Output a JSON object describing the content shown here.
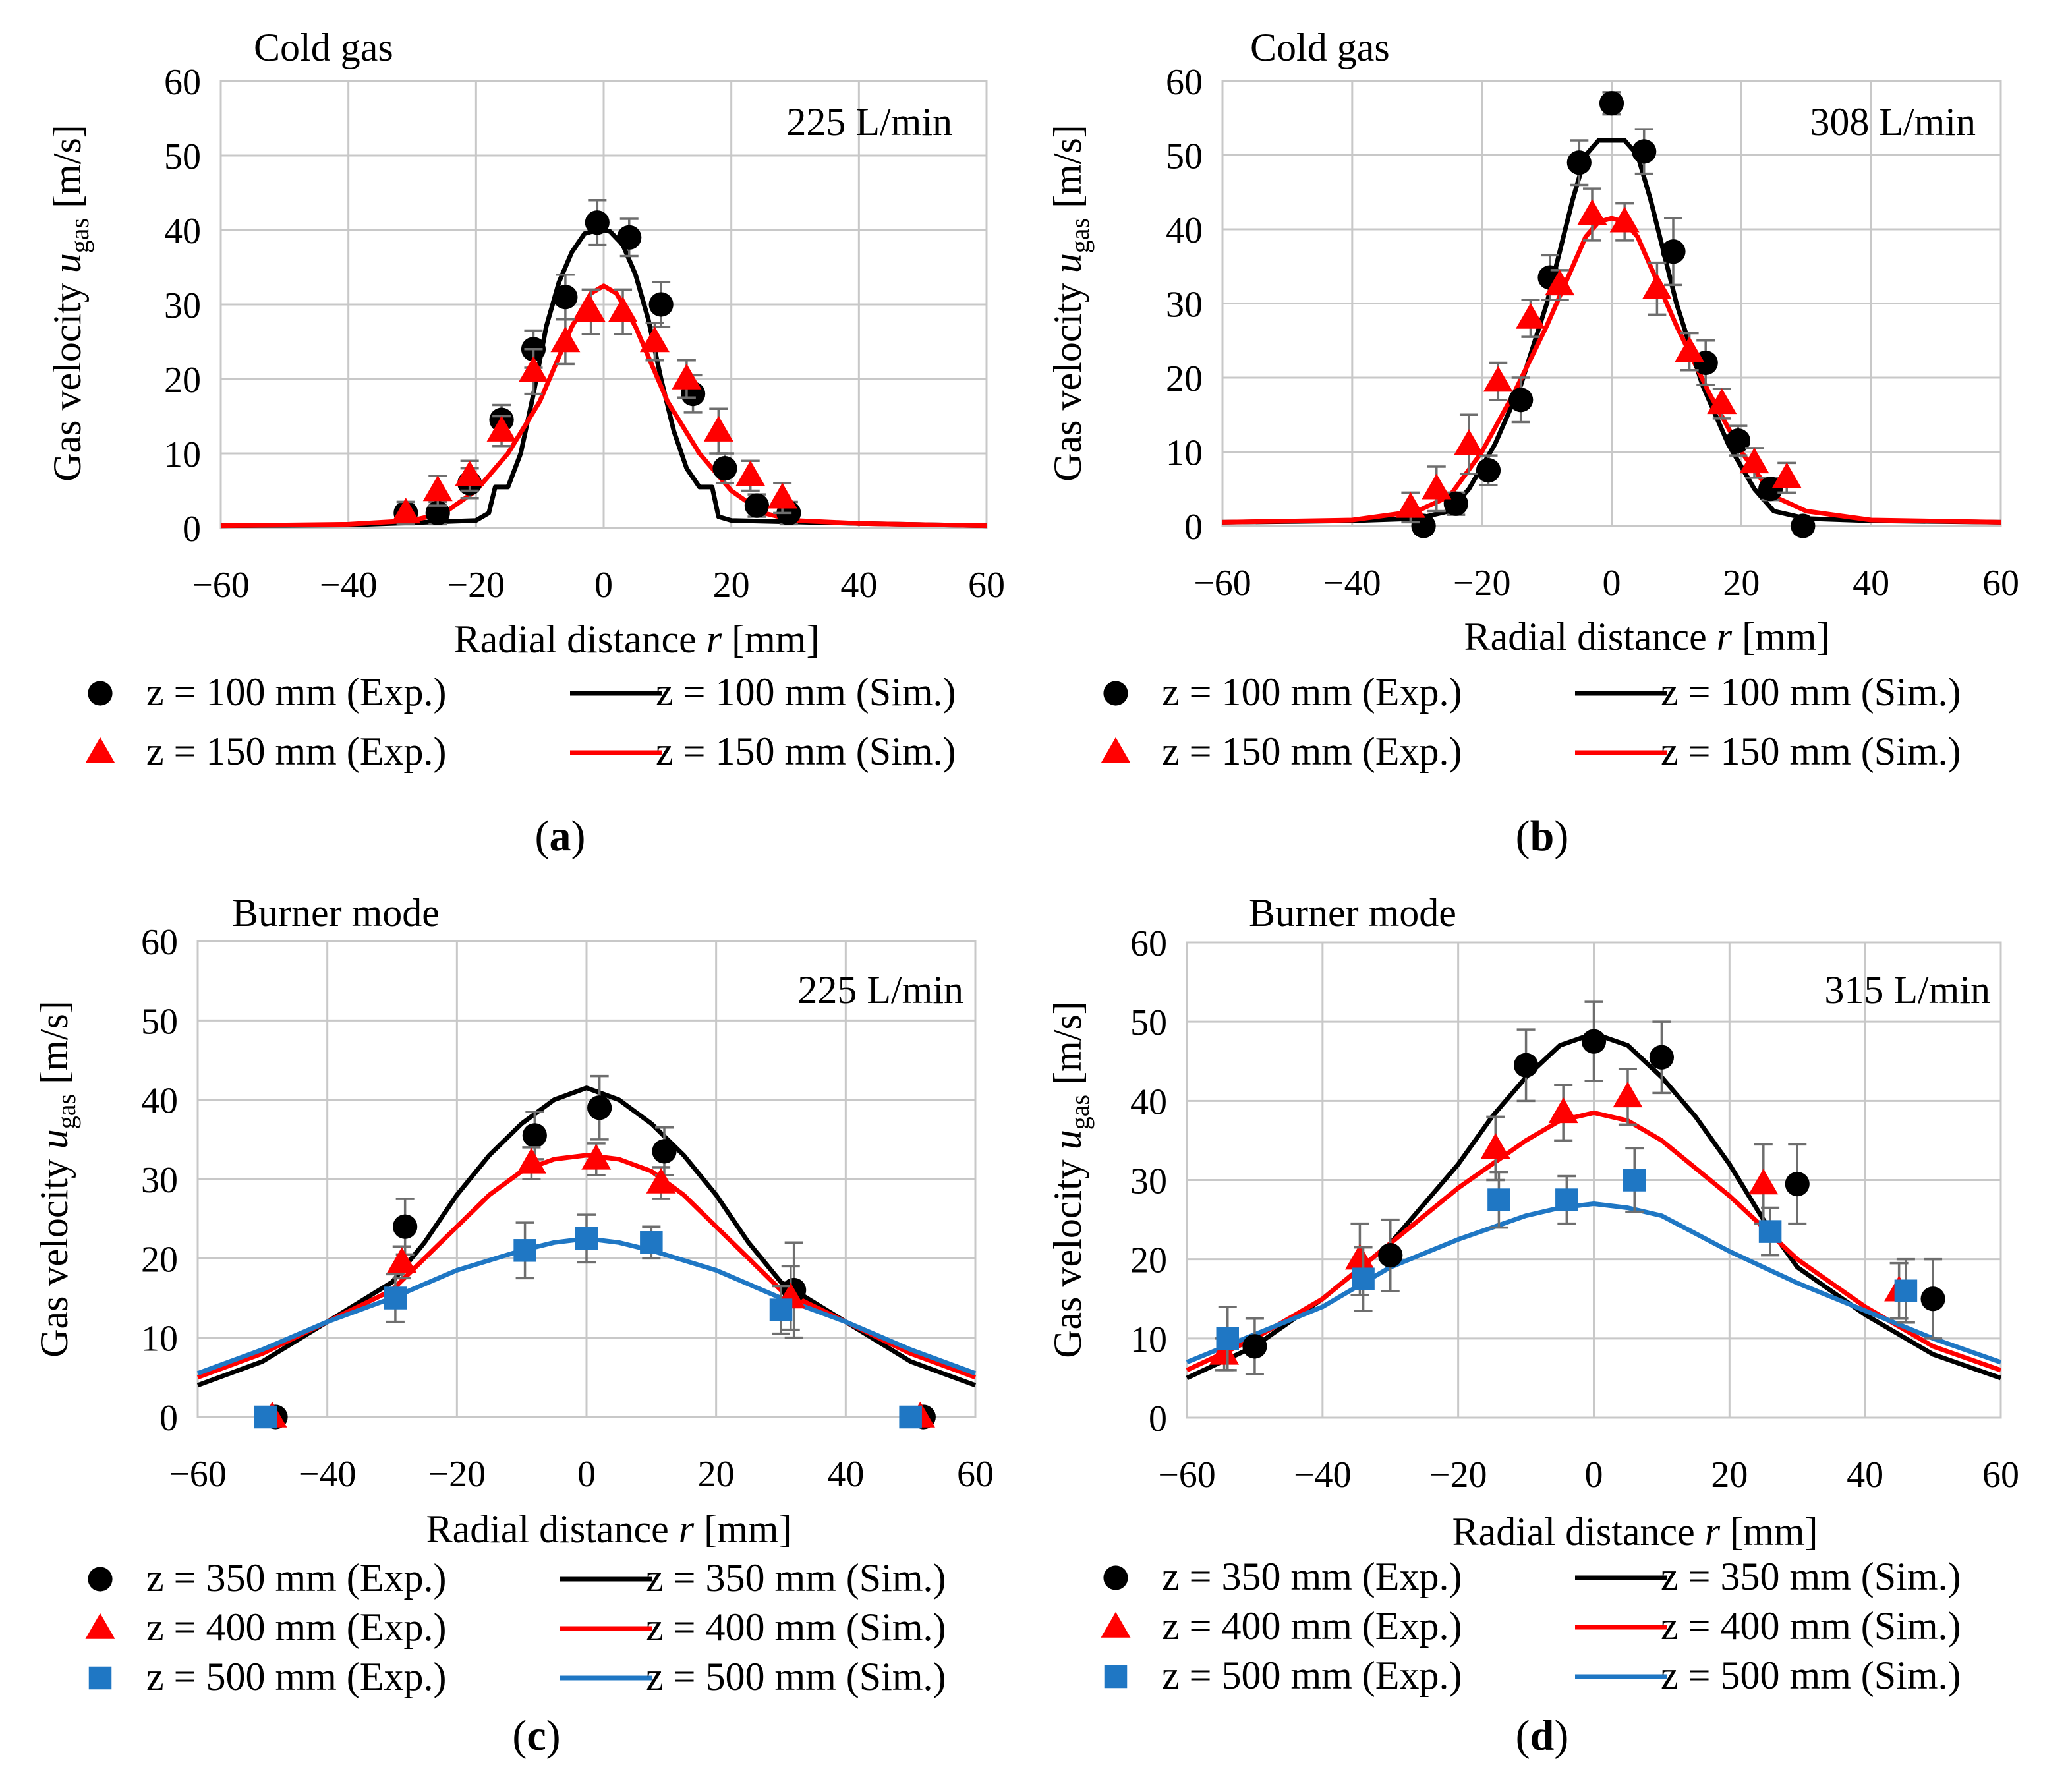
{
  "chart_data": [
    {
      "id": "a",
      "type": "scatter",
      "title": "Cold gas",
      "flow_label": "225 L/min",
      "panel_label": "(a)",
      "panel_letter": "a",
      "xlabel_pre": "Radial distance ",
      "xlabel_var": "r",
      "xlabel_post": " [mm]",
      "ylabel_pre": "Gas velocity ",
      "ylabel_var": "u",
      "ylabel_sub": "gas",
      "ylabel_post": " [m/s]",
      "xlim": [
        -60,
        60
      ],
      "ylim": [
        0,
        60
      ],
      "xticks": [
        -60,
        -40,
        -20,
        0,
        20,
        40,
        60
      ],
      "yticks": [
        0,
        10,
        20,
        30,
        40,
        50,
        60
      ],
      "xtick_labels": [
        "−60",
        "−40",
        "−20",
        "0",
        "20",
        "40",
        "60"
      ],
      "ytick_labels": [
        "0",
        "10",
        "20",
        "30",
        "40",
        "50",
        "60"
      ],
      "grid": true,
      "series": [
        {
          "name": "z = 100 mm (Exp.)",
          "kind": "exp",
          "marker": "circle",
          "color": "#000000",
          "x": [
            -31,
            -26,
            -21,
            -16,
            -11,
            -6,
            -1,
            4,
            9,
            14,
            19,
            24,
            29
          ],
          "y": [
            2,
            2,
            6,
            14.5,
            24,
            31,
            41,
            39,
            30,
            18,
            8,
            3,
            2
          ],
          "err": [
            1.5,
            1.5,
            2,
            2,
            2.5,
            3,
            3,
            2.5,
            3,
            2.5,
            2,
            1.5,
            1.5
          ]
        },
        {
          "name": "z = 150 mm (Exp.)",
          "kind": "exp",
          "marker": "triangle",
          "color": "#ff0000",
          "x": [
            -31,
            -26,
            -21,
            -16,
            -11,
            -6,
            -2,
            3,
            8,
            13,
            18,
            23,
            28
          ],
          "y": [
            2,
            5,
            7,
            13,
            21,
            25,
            29,
            29,
            25,
            20,
            13,
            7,
            4
          ],
          "err": [
            1.5,
            2,
            2,
            2,
            3,
            3,
            3,
            3,
            2.5,
            2.5,
            3,
            2,
            2
          ]
        },
        {
          "name": "z = 100 mm (Sim.)",
          "kind": "sim",
          "color": "#000000",
          "x": [
            -60,
            -40,
            -20,
            -18,
            -17,
            -15,
            -13,
            -11,
            -9,
            -7,
            -5,
            -3,
            -1,
            0,
            1,
            3,
            5,
            7,
            9,
            11,
            13,
            15,
            17,
            18,
            20,
            40,
            60
          ],
          "y": [
            0.3,
            0.4,
            1,
            2,
            5.5,
            5.5,
            10,
            18,
            27,
            33,
            37,
            39.5,
            40,
            40,
            39.8,
            38,
            34,
            28,
            20,
            13,
            8,
            5.5,
            5.5,
            1.5,
            1,
            0.6,
            0.3
          ]
        },
        {
          "name": "z = 150 mm (Sim.)",
          "kind": "sim",
          "color": "#ff0000",
          "x": [
            -60,
            -40,
            -30,
            -25,
            -20,
            -15,
            -10,
            -5,
            -2,
            0,
            2,
            5,
            10,
            15,
            20,
            25,
            30,
            40,
            60
          ],
          "y": [
            0.3,
            0.5,
            1,
            2,
            5,
            10,
            17,
            27,
            31.5,
            32.5,
            31.5,
            27,
            17,
            10,
            5,
            2,
            1,
            0.6,
            0.3
          ]
        }
      ],
      "legend_rows": [
        [
          0,
          2
        ],
        [
          1,
          3
        ]
      ]
    },
    {
      "id": "b",
      "type": "scatter",
      "title": "Cold gas",
      "flow_label": "308 L/min",
      "panel_label": "(b)",
      "panel_letter": "b",
      "xlabel_pre": "Radial distance ",
      "xlabel_var": "r",
      "xlabel_post": " [mm]",
      "ylabel_pre": "Gas velocity ",
      "ylabel_var": "u",
      "ylabel_sub": "gas",
      "ylabel_post": " [m/s]",
      "xlim": [
        -60,
        60
      ],
      "ylim": [
        0,
        60
      ],
      "xticks": [
        -60,
        -40,
        -20,
        0,
        20,
        40,
        60
      ],
      "yticks": [
        0,
        10,
        20,
        30,
        40,
        50,
        60
      ],
      "xtick_labels": [
        "−60",
        "−40",
        "−20",
        "0",
        "20",
        "40",
        "60"
      ],
      "ytick_labels": [
        "0",
        "10",
        "20",
        "30",
        "40",
        "50",
        "60"
      ],
      "grid": true,
      "series": [
        {
          "name": "z = 100 mm (Exp.)",
          "kind": "exp",
          "marker": "circle",
          "color": "#000000",
          "x": [
            -29,
            -24,
            -19,
            -14,
            -9.5,
            -5,
            0,
            5,
            9.5,
            14.5,
            19.5,
            24.5,
            29.5
          ],
          "y": [
            0,
            3,
            7.5,
            17,
            33.5,
            49,
            57,
            50.5,
            37,
            22,
            11.5,
            5,
            0
          ],
          "err": [
            1,
            1.5,
            2,
            3,
            3,
            3,
            1.5,
            3,
            4.5,
            3,
            2,
            1.5,
            1
          ]
        },
        {
          "name": "z = 150 mm (Exp.)",
          "kind": "exp",
          "marker": "triangle",
          "color": "#ff0000",
          "x": [
            -31,
            -27,
            -22,
            -17.5,
            -12.5,
            -8,
            -3,
            2,
            7,
            12,
            17,
            22,
            27
          ],
          "y": [
            2.5,
            5,
            11,
            19.5,
            28,
            32.5,
            42,
            41,
            32,
            23.5,
            16.5,
            8.5,
            6.5
          ],
          "err": [
            2,
            3,
            4,
            2.5,
            2.5,
            2,
            3.5,
            2.5,
            3.5,
            2.5,
            2,
            2,
            2
          ]
        },
        {
          "name": "z = 100 mm (Sim.)",
          "kind": "sim",
          "color": "#000000",
          "x": [
            -60,
            -40,
            -30,
            -25,
            -22,
            -18,
            -14,
            -10,
            -6,
            -4,
            -2,
            0,
            2,
            4,
            6,
            10,
            14,
            18,
            22,
            25,
            30,
            40,
            60
          ],
          "y": [
            0.5,
            0.7,
            1,
            2,
            5,
            11,
            19,
            30,
            44,
            50,
            52,
            52,
            52,
            50,
            44,
            30,
            19,
            11,
            5,
            2,
            1,
            0.7,
            0.5
          ]
        },
        {
          "name": "z = 150 mm (Sim.)",
          "kind": "sim",
          "color": "#ff0000",
          "x": [
            -60,
            -40,
            -30,
            -25,
            -20,
            -15,
            -10,
            -6,
            -4,
            -2,
            0,
            2,
            4,
            6,
            10,
            15,
            20,
            25,
            30,
            40,
            60
          ],
          "y": [
            0.5,
            0.8,
            2,
            4,
            10,
            18,
            27,
            35,
            39,
            41,
            41.5,
            41,
            39,
            35,
            27,
            18,
            10,
            4,
            2,
            0.8,
            0.5
          ]
        }
      ],
      "legend_rows": [
        [
          0,
          2
        ],
        [
          1,
          3
        ]
      ]
    },
    {
      "id": "c",
      "type": "scatter",
      "title": "Burner mode",
      "flow_label": "225 L/min",
      "panel_label": "(c)",
      "panel_letter": "c",
      "xlabel_pre": "Radial distance ",
      "xlabel_var": "r",
      "xlabel_post": " [mm]",
      "ylabel_pre": "Gas velocity ",
      "ylabel_var": "u",
      "ylabel_sub": "gas",
      "ylabel_post": " [m/s]",
      "xlim": [
        -60,
        60
      ],
      "ylim": [
        0,
        60
      ],
      "xticks": [
        -60,
        -40,
        -20,
        0,
        20,
        40,
        60
      ],
      "yticks": [
        0,
        10,
        20,
        30,
        40,
        50,
        60
      ],
      "xtick_labels": [
        "−60",
        "−40",
        "−20",
        "0",
        "20",
        "40",
        "60"
      ],
      "ytick_labels": [
        "0",
        "10",
        "20",
        "30",
        "40",
        "50",
        "60"
      ],
      "grid": true,
      "series": [
        {
          "name": "z = 350 mm (Exp.)",
          "kind": "exp",
          "marker": "circle",
          "color": "#000000",
          "x": [
            -48,
            -28,
            -8,
            2,
            12,
            32,
            52
          ],
          "y": [
            0,
            24,
            35.5,
            39,
            33.5,
            16,
            0
          ],
          "err": [
            0,
            3.5,
            3,
            4,
            3,
            6,
            0
          ]
        },
        {
          "name": "z = 400 mm (Exp.)",
          "kind": "exp",
          "marker": "triangle",
          "color": "#ff0000",
          "x": [
            -48.5,
            -28.5,
            -8.5,
            1.5,
            11.5,
            31.5,
            51.5
          ],
          "y": [
            0,
            19.5,
            32,
            32.5,
            29.5,
            15,
            0
          ],
          "err": [
            0,
            2,
            2,
            2,
            2,
            4,
            0
          ]
        },
        {
          "name": "z = 500 mm (Exp.)",
          "kind": "exp",
          "marker": "square",
          "color": "#1f77c4",
          "x": [
            -49.5,
            -29.5,
            -9.5,
            0,
            10,
            30,
            50
          ],
          "y": [
            0,
            15,
            21,
            22.5,
            22,
            13.5,
            0
          ],
          "err": [
            0,
            3,
            3.5,
            3,
            2,
            3,
            0
          ]
        },
        {
          "name": "z = 350 mm (Sim.)",
          "kind": "sim",
          "color": "#000000",
          "x": [
            -60,
            -50,
            -40,
            -30,
            -25,
            -20,
            -15,
            -10,
            -5,
            0,
            5,
            10,
            15,
            20,
            25,
            30,
            40,
            50,
            60
          ],
          "y": [
            4,
            7,
            12,
            17,
            22,
            28,
            33,
            37,
            40,
            41.5,
            40,
            37,
            33,
            28,
            22,
            17,
            12,
            7,
            4
          ]
        },
        {
          "name": "z = 400 mm (Sim.)",
          "kind": "sim",
          "color": "#ff0000",
          "x": [
            -60,
            -50,
            -40,
            -30,
            -25,
            -20,
            -15,
            -10,
            -5,
            0,
            5,
            10,
            15,
            20,
            25,
            30,
            40,
            50,
            60
          ],
          "y": [
            5,
            8,
            12,
            16,
            20,
            24,
            28,
            31,
            32.5,
            33,
            32.5,
            31,
            28,
            24,
            20,
            16,
            12,
            8,
            5
          ]
        },
        {
          "name": "z = 500 mm (Sim.)",
          "kind": "sim",
          "color": "#1f77c4",
          "x": [
            -60,
            -50,
            -40,
            -30,
            -20,
            -10,
            -5,
            0,
            5,
            10,
            20,
            30,
            40,
            50,
            60
          ],
          "y": [
            5.5,
            8.5,
            12,
            15,
            18.5,
            21,
            22,
            22.5,
            22,
            21,
            18.5,
            15,
            12,
            8.5,
            5.5
          ]
        }
      ],
      "legend_rows": [
        [
          0,
          3
        ],
        [
          1,
          4
        ],
        [
          2,
          5
        ]
      ]
    },
    {
      "id": "d",
      "type": "scatter",
      "title": "Burner mode",
      "flow_label": "315 L/min",
      "panel_label": "(d)",
      "panel_letter": "d",
      "xlabel_pre": "Radial distance ",
      "xlabel_var": "r",
      "xlabel_post": "  [mm]",
      "ylabel_pre": "Gas velocity ",
      "ylabel_var": "u",
      "ylabel_sub": "gas",
      "ylabel_post": " [m/s]",
      "xlim": [
        -60,
        60
      ],
      "ylim": [
        0,
        60
      ],
      "xticks": [
        -60,
        -40,
        -20,
        0,
        20,
        40,
        60
      ],
      "yticks": [
        0,
        10,
        20,
        30,
        40,
        50,
        60
      ],
      "xtick_labels": [
        "−60",
        "−40",
        "−20",
        "0",
        "20",
        "40",
        "60"
      ],
      "ytick_labels": [
        "0",
        "10",
        "20",
        "30",
        "40",
        "50",
        "60"
      ],
      "grid": true,
      "series": [
        {
          "name": "z = 350 mm (Exp.)",
          "kind": "exp",
          "marker": "circle",
          "color": "#000000",
          "x": [
            -50,
            -30,
            -10,
            0,
            10,
            30,
            50
          ],
          "y": [
            9,
            20.5,
            44.5,
            47.5,
            45.5,
            29.5,
            15
          ],
          "err": [
            3.5,
            4.5,
            4.5,
            5,
            4.5,
            5,
            5
          ]
        },
        {
          "name": "z = 400 mm (Exp.)",
          "kind": "exp",
          "marker": "triangle",
          "color": "#ff0000",
          "x": [
            -54.5,
            -34.5,
            -14.5,
            -4.5,
            5,
            25,
            45
          ],
          "y": [
            8,
            20,
            34,
            38.5,
            40.5,
            29.5,
            16
          ],
          "err": [
            2,
            4.5,
            4,
            3.5,
            3.5,
            5,
            3.5
          ]
        },
        {
          "name": "z = 500 mm (Exp.)",
          "kind": "exp",
          "marker": "square",
          "color": "#1f77c4",
          "x": [
            -54,
            -34,
            -14,
            -4,
            6,
            26,
            46
          ],
          "y": [
            10,
            17.5,
            27.5,
            27.5,
            30,
            23.5,
            16
          ],
          "err": [
            4,
            4,
            3.5,
            3,
            4,
            3,
            4
          ]
        },
        {
          "name": "z = 350 mm (Sim.)",
          "kind": "sim",
          "color": "#000000",
          "x": [
            -60,
            -50,
            -40,
            -30,
            -20,
            -15,
            -10,
            -5,
            0,
            5,
            10,
            15,
            20,
            25,
            30,
            40,
            50,
            60
          ],
          "y": [
            5,
            9,
            15,
            22,
            32,
            38,
            43,
            47,
            48.5,
            47,
            43,
            38,
            32,
            25,
            19,
            13,
            8,
            5
          ]
        },
        {
          "name": "z = 400 mm (Sim.)",
          "kind": "sim",
          "color": "#ff0000",
          "x": [
            -60,
            -50,
            -40,
            -30,
            -20,
            -10,
            -5,
            0,
            5,
            10,
            20,
            30,
            40,
            50,
            60
          ],
          "y": [
            6,
            10,
            15,
            22,
            29,
            35,
            37.5,
            38.5,
            37.5,
            35,
            28,
            20,
            14,
            9,
            6
          ]
        },
        {
          "name": "z = 500 mm (Sim.)",
          "kind": "sim",
          "color": "#1f77c4",
          "x": [
            -60,
            -50,
            -40,
            -30,
            -20,
            -10,
            -5,
            0,
            5,
            10,
            20,
            30,
            40,
            50,
            60
          ],
          "y": [
            7,
            10.5,
            14,
            19,
            22.5,
            25.5,
            26.5,
            27,
            26.5,
            25.5,
            21,
            17,
            13.5,
            10,
            7
          ]
        }
      ],
      "legend_rows": [
        [
          0,
          3
        ],
        [
          1,
          4
        ],
        [
          2,
          5
        ]
      ]
    }
  ]
}
